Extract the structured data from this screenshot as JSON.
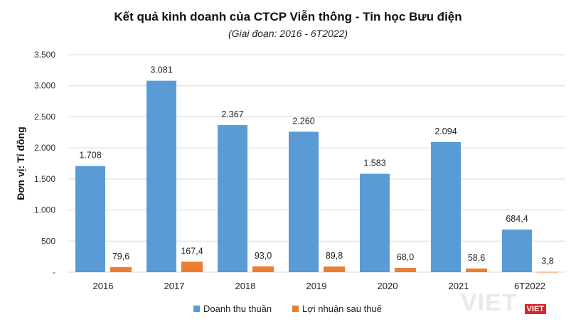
{
  "chart_data": {
    "type": "bar",
    "title": "Kết quả kinh doanh của CTCP Viễn thông - Tin học Bưu điện",
    "subtitle": "(Giai đoạn: 2016 - 6T2022)",
    "ylabel": "Đơn vị: Tỉ đồng",
    "xlabel": "",
    "categories": [
      "2016",
      "2017",
      "2018",
      "2019",
      "2020",
      "2021",
      "6T2022"
    ],
    "ylim": [
      0,
      3500
    ],
    "yticks": [
      0,
      500,
      1000,
      1500,
      2000,
      2500,
      3000,
      3500
    ],
    "ytick_labels": [
      "-",
      "500",
      "1.000",
      "1.500",
      "2.000",
      "2.500",
      "3.000",
      "3.500"
    ],
    "grid": true,
    "legend_position": "bottom",
    "series": [
      {
        "name": "Doanh thu thuần",
        "color": "#5b9bd5",
        "values": [
          1708,
          3081,
          2367,
          2260,
          1583,
          2094,
          684.4
        ],
        "labels": [
          "1.708",
          "3.081",
          "2.367",
          "2.260",
          "1.583",
          "2.094",
          "684,4"
        ]
      },
      {
        "name": "Lợi nhuận sau thuế",
        "color": "#ed7d31",
        "values": [
          79.6,
          167.4,
          93.0,
          89.8,
          68.0,
          58.6,
          3.8
        ],
        "labels": [
          "79,6",
          "167,4",
          "93,0",
          "89,8",
          "68,0",
          "58,6",
          "3,8"
        ]
      }
    ]
  },
  "watermark": {
    "main": "VIET",
    "badge": "VIET"
  }
}
